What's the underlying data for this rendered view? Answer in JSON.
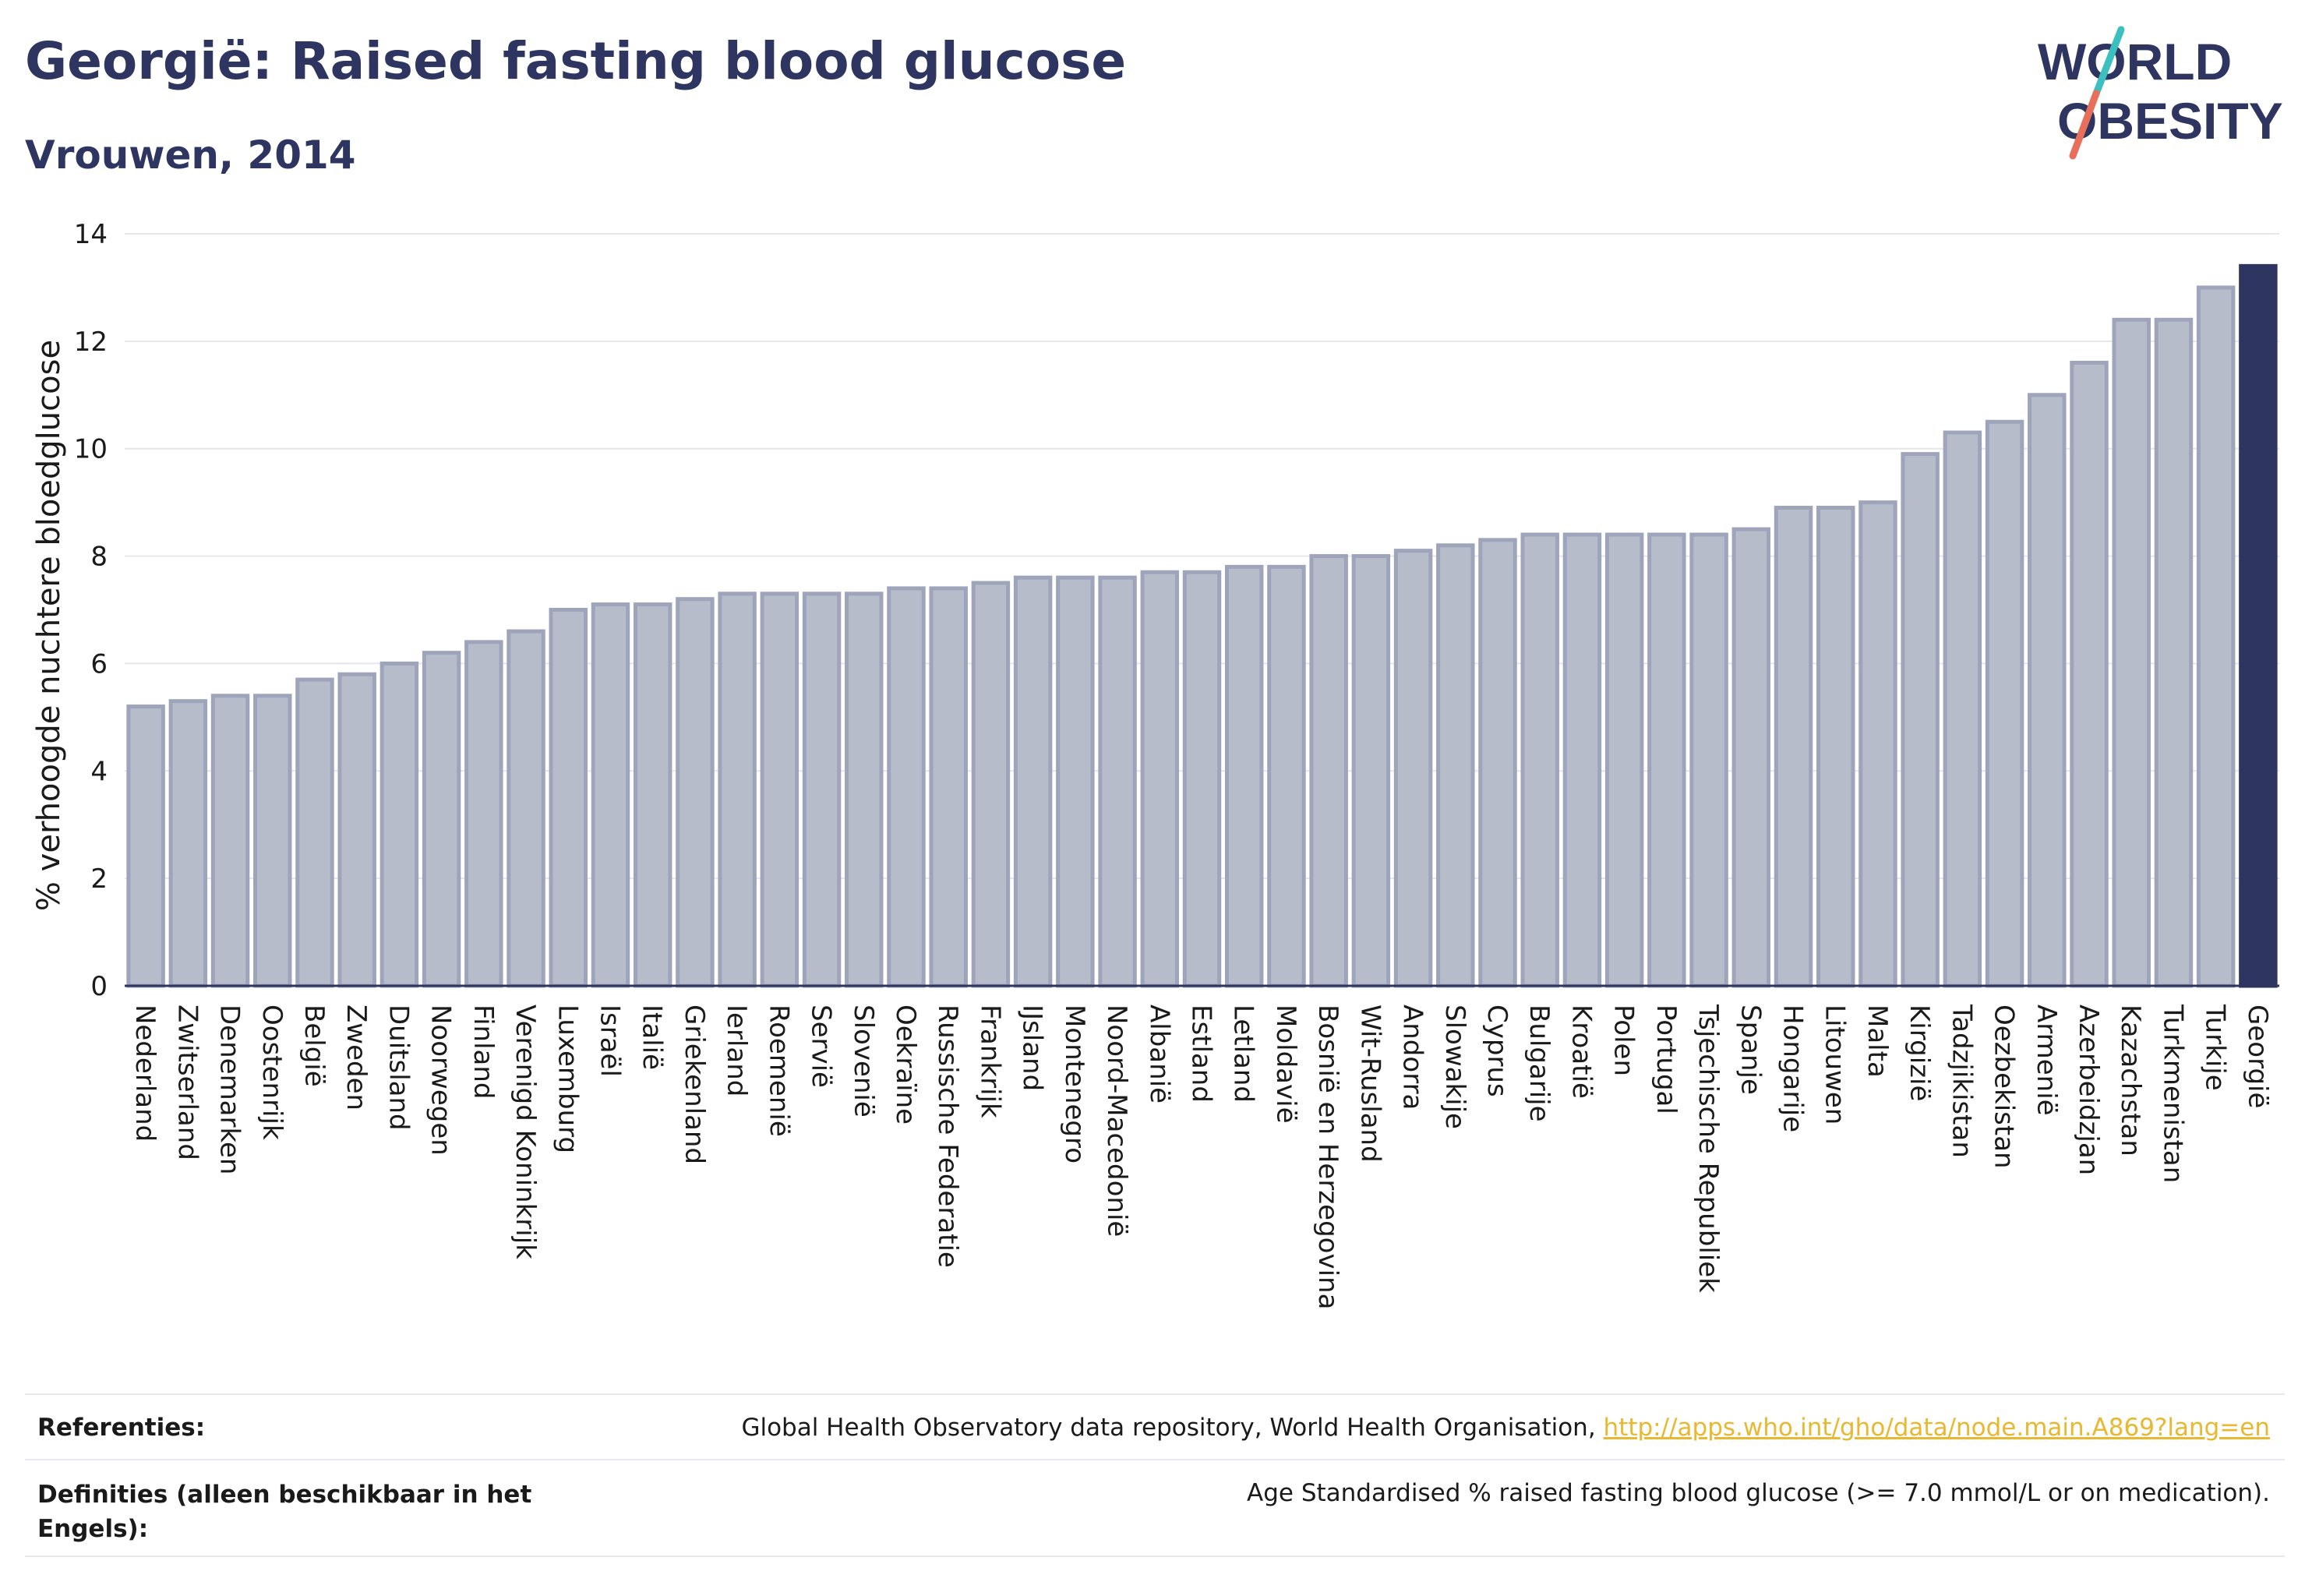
{
  "header": {
    "title": "Georgië: Raised fasting blood glucose",
    "subtitle": "Vrouwen, 2014"
  },
  "logo": {
    "line1": "WORLD",
    "line2": "OBESITY",
    "colors": {
      "text": "#2d3560",
      "slash_top": "#3bbfbf",
      "slash_bottom": "#e8705a"
    }
  },
  "chart_data": {
    "type": "bar",
    "ylabel": "% verhoogde nuchtere bloedglucose",
    "ylim": [
      0,
      14
    ],
    "yticks": [
      0,
      2,
      4,
      6,
      8,
      10,
      12,
      14
    ],
    "grid": true,
    "highlight": "Georgië",
    "colors": {
      "bar": "#b7bccb",
      "bar_edge": "#9ea4ba",
      "highlight": "#2d3560",
      "grid": "#e6e6ec",
      "axis": "#2d3560"
    },
    "categories": [
      "Nederland",
      "Zwitserland",
      "Denemarken",
      "Oostenrijk",
      "België",
      "Zweden",
      "Duitsland",
      "Noorwegen",
      "Finland",
      "Verenigd Koninkrijk",
      "Luxemburg",
      "Israël",
      "Italië",
      "Griekenland",
      "Ierland",
      "Roemenië",
      "Servië",
      "Slovenië",
      "Oekraïne",
      "Russische Federatie",
      "Frankrijk",
      "IJsland",
      "Montenegro",
      "Noord-Macedonië",
      "Albanië",
      "Estland",
      "Letland",
      "Moldavië",
      "Bosnië en Herzegovina",
      "Wit-Rusland",
      "Andorra",
      "Slowakije",
      "Cyprus",
      "Bulgarije",
      "Kroatië",
      "Polen",
      "Portugal",
      "Tsjechische Republiek",
      "Spanje",
      "Hongarije",
      "Litouwen",
      "Malta",
      "Kirgizië",
      "Tadzjikistan",
      "Oezbekistan",
      "Armenië",
      "Azerbeidzjan",
      "Kazachstan",
      "Turkmenistan",
      "Turkije",
      "Georgië"
    ],
    "values": [
      5.2,
      5.3,
      5.4,
      5.4,
      5.7,
      5.8,
      6.0,
      6.2,
      6.4,
      6.6,
      7.0,
      7.1,
      7.1,
      7.2,
      7.3,
      7.3,
      7.3,
      7.3,
      7.4,
      7.4,
      7.5,
      7.6,
      7.6,
      7.6,
      7.7,
      7.7,
      7.8,
      7.8,
      8.0,
      8.0,
      8.1,
      8.2,
      8.3,
      8.4,
      8.4,
      8.4,
      8.4,
      8.4,
      8.5,
      8.9,
      8.9,
      9.0,
      9.9,
      10.3,
      10.5,
      11.0,
      11.6,
      12.4,
      12.4,
      13.0,
      13.4
    ]
  },
  "footer": {
    "references_label": "Referenties:",
    "references_text": "Global Health Observatory data repository, World Health Organisation, ",
    "references_link": "http://apps.who.int/gho/data/node.main.A869?lang=en",
    "definitions_label": "Definities (alleen beschikbaar in het Engels):",
    "definitions_text": "Age Standardised % raised fasting blood glucose (>= 7.0 mmol/L or on medication)."
  }
}
